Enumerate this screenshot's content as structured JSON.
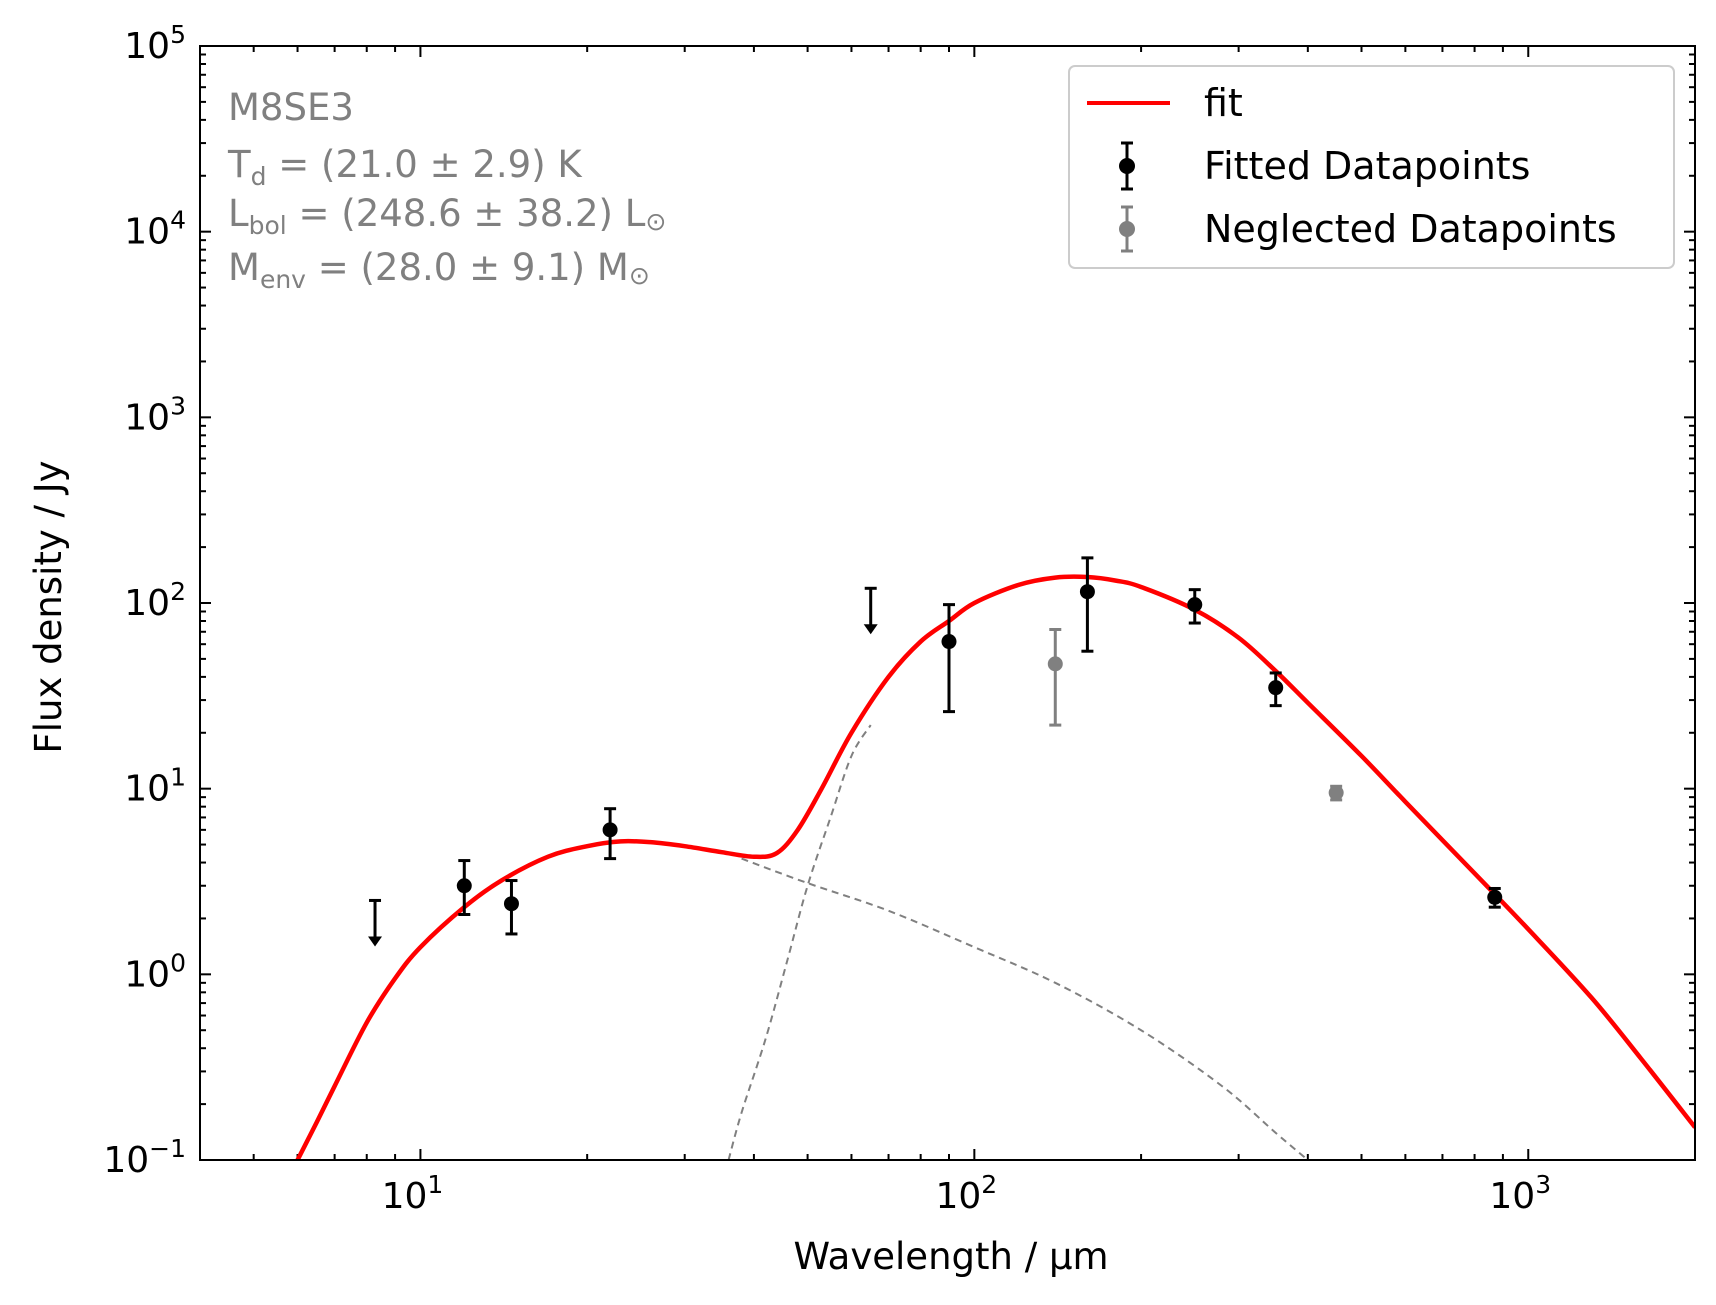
{
  "chart_data": {
    "type": "scatter",
    "xscale": "log",
    "yscale": "log",
    "xlim": [
      4,
      2000
    ],
    "ylim": [
      0.1,
      100000
    ],
    "xlabel": "Wavelength / μm",
    "ylabel": "Flux density / Jy",
    "x_ticks": [
      {
        "value": 10,
        "base": "10",
        "exp": "1"
      },
      {
        "value": 100,
        "base": "10",
        "exp": "2"
      },
      {
        "value": 1000,
        "base": "10",
        "exp": "3"
      }
    ],
    "y_ticks": [
      {
        "value": 0.1,
        "base": "10",
        "exp": "−1"
      },
      {
        "value": 1,
        "base": "10",
        "exp": "0"
      },
      {
        "value": 10,
        "base": "10",
        "exp": "1"
      },
      {
        "value": 100,
        "base": "10",
        "exp": "2"
      },
      {
        "value": 1000,
        "base": "10",
        "exp": "3"
      },
      {
        "value": 10000,
        "base": "10",
        "exp": "4"
      },
      {
        "value": 100000,
        "base": "10",
        "exp": "5"
      }
    ],
    "annotation": {
      "source": "M8SE3",
      "td": {
        "sym": "T",
        "sub": "d",
        "text": " = (21.0 ± 2.9) K"
      },
      "lbol": {
        "sym": "L",
        "sub": "bol",
        "text": " = (248.6 ± 38.2) L",
        "unit": "⊙"
      },
      "menv": {
        "sym": "M",
        "sub": "env",
        "text": " = (28.0 ± 9.1) M",
        "unit": "⊙"
      }
    },
    "legend": {
      "position": "top-right",
      "entries": [
        "fit",
        "Fitted Datapoints",
        "Neglected Datapoints"
      ]
    },
    "colors": {
      "fit": "#ff0000",
      "fitted": "#000000",
      "neglected": "#808080",
      "components": "#808080"
    },
    "series": [
      {
        "name": "fit",
        "kind": "line",
        "points": [
          [
            6.0,
            0.1
          ],
          [
            6.5,
            0.16
          ],
          [
            7.0,
            0.25
          ],
          [
            8.0,
            0.55
          ],
          [
            9.0,
            0.95
          ],
          [
            10.0,
            1.4
          ],
          [
            12.0,
            2.3
          ],
          [
            14.0,
            3.2
          ],
          [
            17.0,
            4.3
          ],
          [
            20.0,
            4.9
          ],
          [
            23.0,
            5.2
          ],
          [
            26.0,
            5.15
          ],
          [
            30.0,
            4.9
          ],
          [
            35.0,
            4.55
          ],
          [
            40.0,
            4.3
          ],
          [
            44.0,
            4.5
          ],
          [
            48.0,
            6.0
          ],
          [
            53.0,
            10.0
          ],
          [
            60.0,
            20.0
          ],
          [
            70.0,
            40.0
          ],
          [
            80.0,
            62.0
          ],
          [
            90.0,
            80.0
          ],
          [
            100.0,
            100.0
          ],
          [
            120.0,
            125.0
          ],
          [
            140.0,
            137.0
          ],
          [
            160.0,
            138.0
          ],
          [
            180.0,
            132.0
          ],
          [
            200.0,
            122.0
          ],
          [
            250.0,
            92.0
          ],
          [
            300.0,
            65.0
          ],
          [
            350.0,
            43.0
          ],
          [
            400.0,
            29.0
          ],
          [
            500.0,
            15.0
          ],
          [
            600.0,
            8.5
          ],
          [
            800.0,
            3.5
          ],
          [
            1000.0,
            1.75
          ],
          [
            1300.0,
            0.75
          ],
          [
            1600.0,
            0.35
          ],
          [
            2000.0,
            0.15
          ]
        ]
      },
      {
        "name": "warm component",
        "kind": "dashed",
        "points": [
          [
            38.0,
            4.2
          ],
          [
            50.0,
            3.1
          ],
          [
            70.0,
            2.2
          ],
          [
            100.0,
            1.4
          ],
          [
            140.0,
            0.9
          ],
          [
            200.0,
            0.5
          ],
          [
            280.0,
            0.25
          ],
          [
            350.0,
            0.14
          ],
          [
            400.0,
            0.1
          ]
        ]
      },
      {
        "name": "cold component",
        "kind": "dashed",
        "points": [
          [
            36.0,
            0.1
          ],
          [
            38.0,
            0.18
          ],
          [
            42.0,
            0.45
          ],
          [
            46.0,
            1.2
          ],
          [
            50.0,
            3.0
          ],
          [
            55.0,
            7.0
          ],
          [
            60.0,
            15.0
          ],
          [
            65.0,
            22.0
          ]
        ]
      },
      {
        "name": "Fitted Datapoints",
        "kind": "errorbar",
        "points": [
          {
            "x": 12.0,
            "y": 3.0,
            "ylo": 2.1,
            "yhi": 4.1
          },
          {
            "x": 14.6,
            "y": 2.4,
            "ylo": 1.65,
            "yhi": 3.2
          },
          {
            "x": 22.0,
            "y": 6.0,
            "ylo": 4.2,
            "yhi": 7.8
          },
          {
            "x": 90.0,
            "y": 62.0,
            "ylo": 26.0,
            "yhi": 98.0
          },
          {
            "x": 160.0,
            "y": 115.0,
            "ylo": 55.0,
            "yhi": 175.0
          },
          {
            "x": 250.0,
            "y": 98.0,
            "ylo": 78.0,
            "yhi": 118.0
          },
          {
            "x": 350.0,
            "y": 35.0,
            "ylo": 28.0,
            "yhi": 42.0
          },
          {
            "x": 870.0,
            "y": 2.6,
            "ylo": 2.3,
            "yhi": 2.9
          }
        ]
      },
      {
        "name": "Upper limits",
        "kind": "upper-limit",
        "points": [
          {
            "x": 8.28,
            "y": 2.5
          },
          {
            "x": 65.0,
            "y": 120.0
          }
        ]
      },
      {
        "name": "Neglected Datapoints",
        "kind": "errorbar",
        "points": [
          {
            "x": 140.0,
            "y": 47.0,
            "ylo": 22.0,
            "yhi": 72.0
          },
          {
            "x": 450.0,
            "y": 9.5,
            "ylo": 8.7,
            "yhi": 10.3
          }
        ]
      }
    ]
  }
}
